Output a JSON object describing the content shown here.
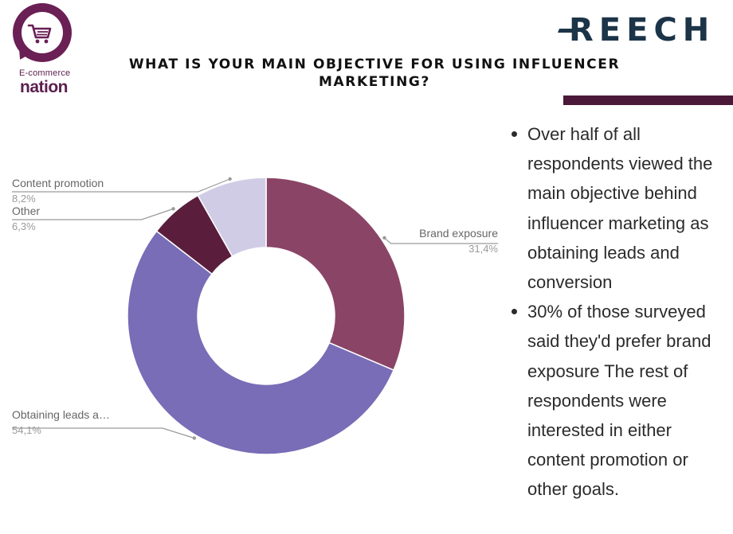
{
  "logo": {
    "line1": "E-commerce",
    "line2": "nation"
  },
  "brand": {
    "name": "REECH"
  },
  "title": "WHAT IS YOUR MAIN OBJECTIVE FOR USING INFLUENCER MARKETING?",
  "colors": {
    "title_bar": "#4a1838",
    "logo": "#6a1f55",
    "brand": "#1c3448"
  },
  "chart_data": {
    "type": "pie",
    "donut": true,
    "categories": [
      "Brand exposure",
      "Obtaining leads a…",
      "Other",
      "Content promotion"
    ],
    "values": [
      31.4,
      54.1,
      6.3,
      8.2
    ],
    "value_labels": [
      "31,4%",
      "54,1%",
      "6,3%",
      "8,2%"
    ],
    "colors": [
      "#8a4466",
      "#786db6",
      "#5a1e3c",
      "#d1cce6"
    ],
    "title": "",
    "legend": "none"
  },
  "bullets": [
    "Over half of all respondents viewed the main objective behind influencer marketing as obtaining leads and conversion",
    "30% of those surveyed said they'd prefer brand exposure The rest of respondents were interested in either content promotion or other goals."
  ]
}
